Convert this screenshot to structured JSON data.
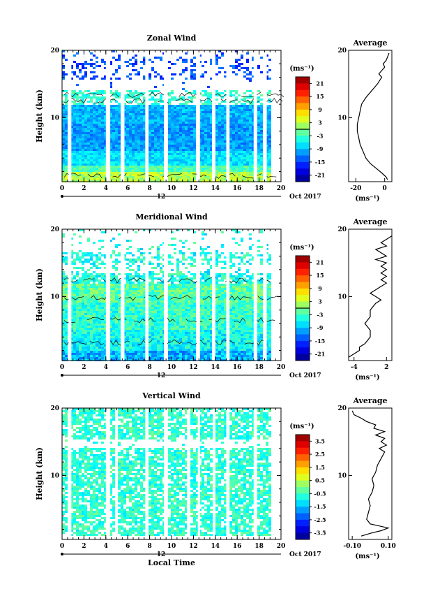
{
  "chart_data": [
    {
      "type": "heatmap",
      "title": "Zonal Wind",
      "ylabel": "Height (km)",
      "x_ticks": [
        "0",
        "2",
        "4",
        "6",
        "8",
        "10",
        "12",
        "14",
        "16",
        "18",
        "20"
      ],
      "y_ticks": [
        "20",
        "10"
      ],
      "xlim": [
        0,
        20
      ],
      "ylim": [
        0.5,
        20
      ],
      "date_labels": [
        "12",
        "Oct 2017"
      ],
      "colorbar": {
        "unit": "(ms⁻¹)",
        "ticks": [
          "21",
          "15",
          "9",
          "3",
          "-3",
          "-9",
          "-15",
          "-21"
        ],
        "range": [
          -24,
          24
        ],
        "zero_line": 0
      },
      "gap_intervals_hours": [
        [
          4.0,
          4.4
        ],
        [
          5.4,
          5.7
        ],
        [
          7.6,
          7.9
        ],
        [
          9.3,
          9.6
        ],
        [
          12.3,
          12.6
        ],
        [
          13.7,
          14.0
        ],
        [
          15.0,
          15.3
        ],
        [
          17.5,
          17.8
        ],
        [
          18.4,
          18.7
        ],
        [
          0.6,
          0.85
        ]
      ],
      "data_bottom_km": 0.5,
      "profile": {
        "title": "Average",
        "x_ticks": [
          "-20",
          "0"
        ],
        "y_ticks": [
          "20",
          "10"
        ],
        "xlabel": "(ms⁻¹)",
        "xlim": [
          -25,
          5
        ],
        "points": [
          [
            2,
            0.8
          ],
          [
            1,
            1.2
          ],
          [
            -2,
            1.8
          ],
          [
            -6,
            2.5
          ],
          [
            -10,
            3.2
          ],
          [
            -13,
            4
          ],
          [
            -15,
            5
          ],
          [
            -17,
            6
          ],
          [
            -18,
            7
          ],
          [
            -19,
            8
          ],
          [
            -19,
            9
          ],
          [
            -18,
            10
          ],
          [
            -17,
            11
          ],
          [
            -16,
            12
          ],
          [
            -13,
            13
          ],
          [
            -9,
            14
          ],
          [
            -5,
            15
          ],
          [
            -2,
            16
          ],
          [
            -4,
            16.5
          ],
          [
            -2,
            17
          ],
          [
            0,
            17.5
          ],
          [
            -1,
            18
          ],
          [
            1,
            18.5
          ],
          [
            2,
            19
          ],
          [
            3,
            19.6
          ]
        ]
      }
    },
    {
      "type": "heatmap",
      "title": "Meridional Wind",
      "ylabel": "Height (km)",
      "x_ticks": [
        "0",
        "2",
        "4",
        "6",
        "8",
        "10",
        "12",
        "14",
        "16",
        "18",
        "20"
      ],
      "y_ticks": [
        "20",
        "10"
      ],
      "xlim": [
        0,
        20
      ],
      "ylim": [
        0.5,
        20
      ],
      "date_labels": [
        "12",
        "Oct 2017"
      ],
      "colorbar": {
        "unit": "(ms⁻¹)",
        "ticks": [
          "21",
          "15",
          "9",
          "3",
          "-3",
          "-9",
          "-15",
          "-21"
        ],
        "range": [
          -24,
          24
        ],
        "zero_line": 0
      },
      "gap_intervals_hours": [
        [
          0.6,
          0.85
        ],
        [
          4.0,
          4.4
        ],
        [
          5.4,
          5.7
        ],
        [
          7.6,
          7.9
        ],
        [
          9.3,
          9.6
        ],
        [
          12.3,
          12.6
        ],
        [
          13.7,
          14.0
        ],
        [
          15.0,
          15.3
        ],
        [
          17.5,
          17.8
        ],
        [
          18.4,
          18.7
        ]
      ],
      "data_bottom_km": 0.5,
      "profile": {
        "title": "Average",
        "x_ticks": [
          "-4",
          "2"
        ],
        "y_ticks": [
          "20",
          "10"
        ],
        "xlabel": "(ms⁻¹)",
        "xlim": [
          -5,
          3
        ],
        "points": [
          [
            -5,
            1
          ],
          [
            -4,
            1.5
          ],
          [
            -3,
            2
          ],
          [
            -3,
            2.5
          ],
          [
            -2,
            3
          ],
          [
            -1,
            4
          ],
          [
            -1,
            5
          ],
          [
            -2,
            6
          ],
          [
            -1,
            7
          ],
          [
            -1,
            8
          ],
          [
            0,
            9
          ],
          [
            1,
            9.5
          ],
          [
            0,
            10
          ],
          [
            -1,
            10.5
          ],
          [
            0,
            11
          ],
          [
            1,
            11.5
          ],
          [
            2,
            12
          ],
          [
            1,
            12.5
          ],
          [
            2,
            13
          ],
          [
            1,
            13.5
          ],
          [
            2,
            14
          ],
          [
            1,
            14.5
          ],
          [
            2,
            15
          ],
          [
            0,
            15.5
          ],
          [
            2,
            16
          ],
          [
            1,
            16.5
          ],
          [
            0,
            17
          ],
          [
            2,
            17.5
          ],
          [
            1,
            18
          ],
          [
            2,
            18.5
          ],
          [
            3,
            19
          ]
        ]
      }
    },
    {
      "type": "heatmap",
      "title": "Vertical Wind",
      "ylabel": "Height (km)",
      "xlabel": "Local Time",
      "x_ticks": [
        "0",
        "2",
        "4",
        "6",
        "8",
        "10",
        "12",
        "14",
        "16",
        "18",
        "20"
      ],
      "y_ticks": [
        "20",
        "10"
      ],
      "xlim": [
        0,
        20
      ],
      "ylim": [
        0.5,
        20
      ],
      "date_labels": [
        "12",
        "Oct 2017"
      ],
      "colorbar": {
        "unit": "(ms⁻¹)",
        "ticks": [
          "3.5",
          "2.5",
          "1.5",
          "0.5",
          "-0.5",
          "-1.5",
          "-2.5",
          "-3.5"
        ],
        "range": [
          -4,
          4
        ],
        "zero_line": null
      },
      "gap_intervals_hours": [
        [
          0.6,
          0.85
        ],
        [
          4.0,
          4.4
        ],
        [
          4.9,
          5.1
        ],
        [
          7.6,
          7.9
        ],
        [
          9.3,
          9.6
        ],
        [
          11.4,
          11.6
        ],
        [
          12.4,
          12.6
        ],
        [
          13.8,
          14.0
        ],
        [
          15.0,
          15.3
        ],
        [
          17.5,
          17.8
        ]
      ],
      "data_bottom_km": 1.0,
      "profile": {
        "title": "Average",
        "x_ticks": [
          "-0.10",
          "0.10"
        ],
        "y_ticks": [
          "20",
          "10"
        ],
        "xlabel": "(ms⁻¹)",
        "xlim": [
          -0.12,
          0.12
        ],
        "points": [
          [
            -0.05,
            1
          ],
          [
            0,
            1.4
          ],
          [
            0.06,
            1.8
          ],
          [
            0.1,
            2.2
          ],
          [
            0,
            2.8
          ],
          [
            -0.02,
            3.5
          ],
          [
            -0.01,
            4.5
          ],
          [
            0,
            5.5
          ],
          [
            -0.01,
            6.5
          ],
          [
            0.01,
            7.5
          ],
          [
            0.02,
            8.5
          ],
          [
            0.01,
            9.5
          ],
          [
            0.03,
            10.5
          ],
          [
            0.04,
            11.5
          ],
          [
            0.06,
            12.5
          ],
          [
            0.08,
            13.5
          ],
          [
            0.05,
            14
          ],
          [
            0.09,
            14.5
          ],
          [
            0.06,
            15
          ],
          [
            0.08,
            15.5
          ],
          [
            0.03,
            16
          ],
          [
            0.08,
            16.5
          ],
          [
            0.02,
            17
          ],
          [
            0.03,
            17.5
          ],
          [
            -0.02,
            18
          ],
          [
            -0.05,
            18.5
          ],
          [
            -0.09,
            19
          ],
          [
            -0.1,
            19.6
          ]
        ]
      }
    }
  ]
}
